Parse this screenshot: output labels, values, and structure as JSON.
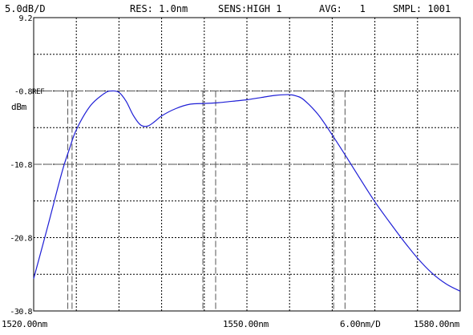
{
  "header": {
    "scale": "5.0dB/D",
    "resolution": "RES: 1.0nm",
    "sensitivity": "SENS:HIGH 1",
    "average": "AVG:   1",
    "sampling": "SMPL: 1001"
  },
  "axis": {
    "y_unit": "dBm",
    "ref_marker": "REF",
    "x_start_label": "1520.00nm",
    "x_center_label": "1550.00nm",
    "x_span_label": "6.00nm/D",
    "x_end_label": "1580.00nm"
  },
  "chart_data": {
    "type": "line",
    "x_range": [
      1520,
      1580
    ],
    "y_range": [
      -30.8,
      9.2
    ],
    "y_ticks": [
      {
        "value": 9.2,
        "label": "9.2"
      },
      {
        "value": -0.8,
        "label": "-0.8"
      },
      {
        "value": -10.8,
        "label": "-10.8"
      },
      {
        "value": -20.8,
        "label": "-20.8"
      },
      {
        "value": -30.8,
        "label": "-30.8"
      }
    ],
    "ref_level": -0.8,
    "threshold_level": -10.8,
    "markers_x": [
      1524.8,
      1525.4,
      1543.8,
      1545.6,
      1562.2,
      1563.8
    ],
    "series": [
      {
        "color": "#1f1fd6",
        "x": [
          1520,
          1522,
          1524,
          1525,
          1526,
          1528,
          1530,
          1531,
          1532,
          1533,
          1534,
          1535,
          1536,
          1537,
          1538,
          1540,
          1542,
          1544,
          1546,
          1548,
          1550,
          1552,
          1554,
          1556,
          1557,
          1558,
          1560,
          1562,
          1564,
          1566,
          1568,
          1570,
          1572,
          1574,
          1576,
          1578,
          1580
        ],
        "y": [
          -26.4,
          -19.2,
          -11.8,
          -8.8,
          -6.1,
          -2.8,
          -1.1,
          -0.8,
          -1.0,
          -2.2,
          -4.1,
          -5.4,
          -5.6,
          -5.0,
          -4.2,
          -3.2,
          -2.6,
          -2.5,
          -2.4,
          -2.2,
          -2.0,
          -1.7,
          -1.4,
          -1.3,
          -1.5,
          -2.0,
          -4.0,
          -6.8,
          -9.8,
          -12.9,
          -15.9,
          -18.6,
          -21.2,
          -23.6,
          -25.6,
          -27.1,
          -28.1
        ]
      }
    ]
  }
}
